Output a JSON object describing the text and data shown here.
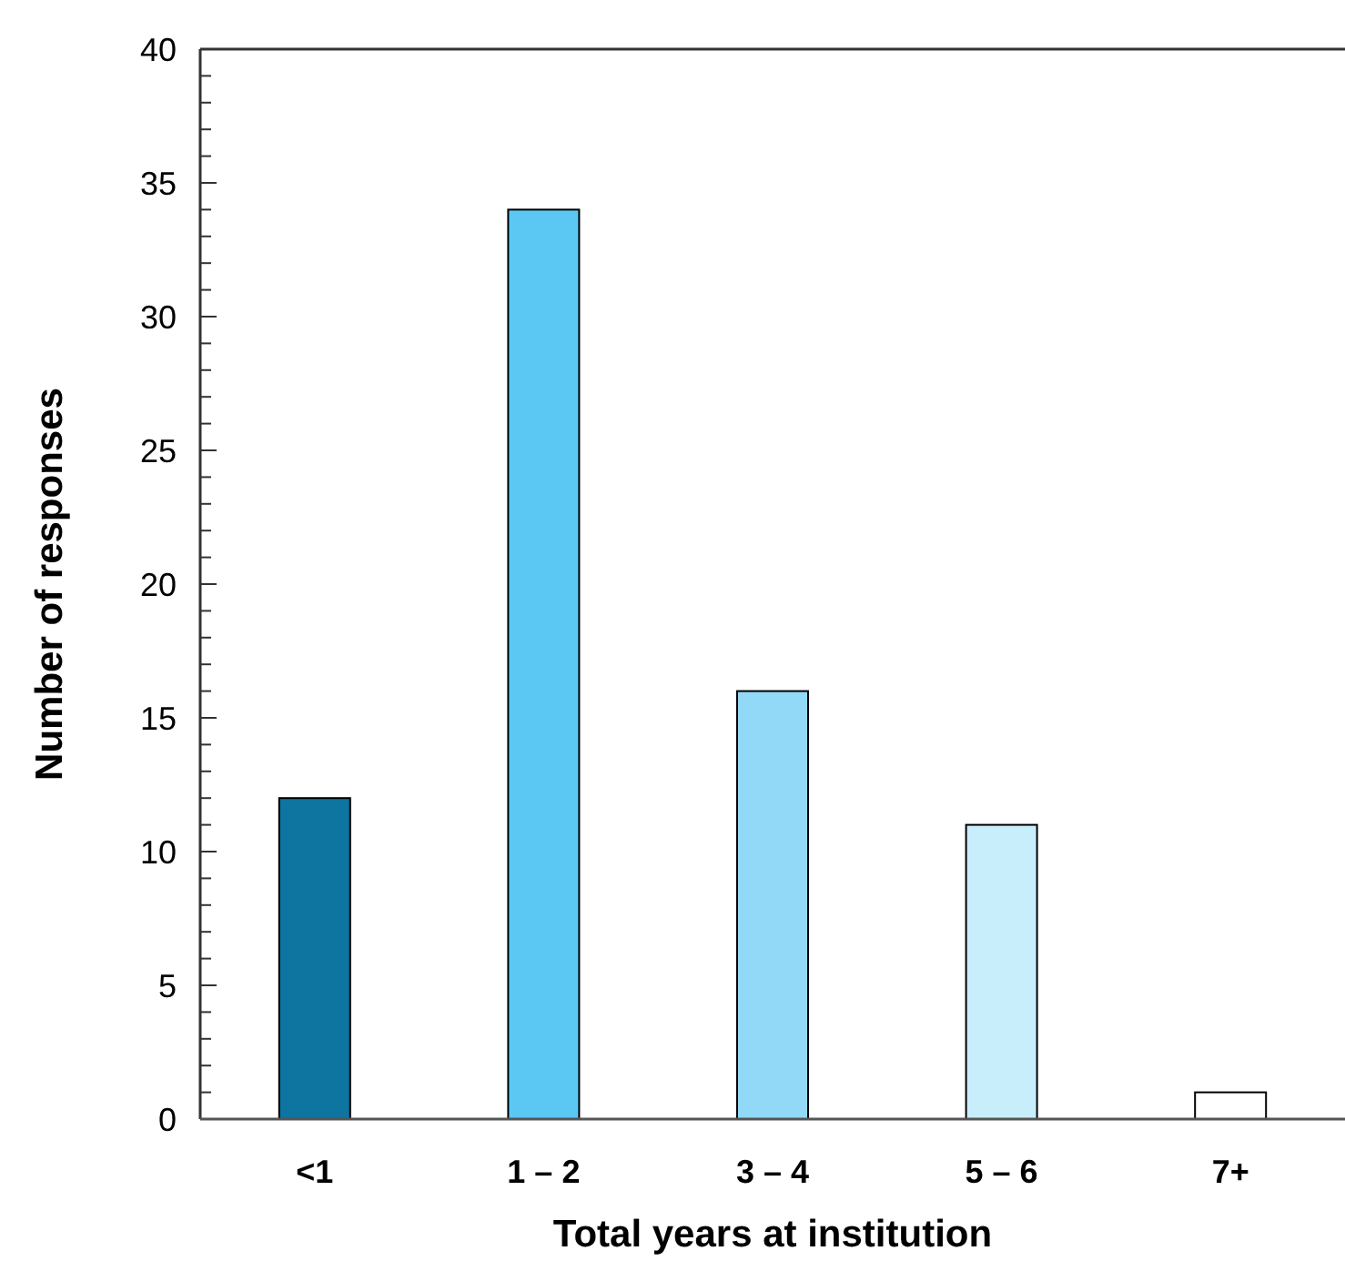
{
  "chart_data": {
    "type": "bar",
    "xlabel": "Total years at institution",
    "ylabel": "Number of responses",
    "categories": [
      "<1",
      "1 – 2",
      "3 – 4",
      "5 – 6",
      "7+"
    ],
    "values": [
      12,
      34,
      16,
      11,
      1
    ],
    "colors": [
      "#0e74a0",
      "#5bc8f3",
      "#92d9f7",
      "#c9eefb",
      "#ffffff"
    ],
    "ylim": [
      0,
      40
    ],
    "yticks": [
      0,
      {
        "value": 1,
        "label": null
      },
      {
        "value": 2,
        "label": null
      },
      {
        "value": 3,
        "label": null
      },
      {
        "value": 4,
        "label": null
      },
      5,
      {
        "value": 6,
        "label": null
      },
      {
        "value": 7,
        "label": null
      },
      {
        "value": 8,
        "label": null
      },
      {
        "value": 9,
        "label": null
      },
      10,
      {
        "value": 11,
        "label": null
      },
      {
        "value": 12,
        "label": null
      },
      {
        "value": 13,
        "label": null
      },
      {
        "value": 14,
        "label": null
      },
      15,
      {
        "value": 16,
        "label": null
      },
      {
        "value": 17,
        "label": null
      },
      {
        "value": 18,
        "label": null
      },
      {
        "value": 19,
        "label": null
      },
      20,
      {
        "value": 21,
        "label": null
      },
      {
        "value": 22,
        "label": null
      },
      {
        "value": 23,
        "label": null
      },
      {
        "value": 24,
        "label": null
      },
      25,
      {
        "value": 26,
        "label": null
      },
      {
        "value": 27,
        "label": null
      },
      {
        "value": 28,
        "label": null
      },
      {
        "value": 29,
        "label": null
      },
      30,
      {
        "value": 31,
        "label": null
      },
      {
        "value": 32,
        "label": null
      },
      {
        "value": 33,
        "label": null
      },
      {
        "value": 34,
        "label": null
      },
      35,
      {
        "value": 36,
        "label": null
      },
      {
        "value": 37,
        "label": null
      },
      {
        "value": 38,
        "label": null
      },
      {
        "value": 39,
        "label": null
      },
      40
    ],
    "grid": false
  }
}
